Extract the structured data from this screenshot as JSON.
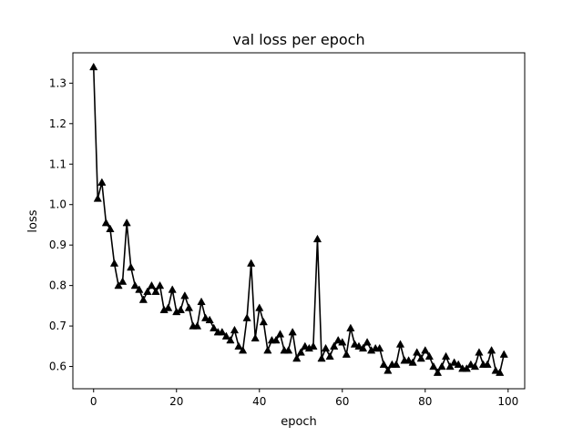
{
  "chart_data": {
    "type": "line",
    "title": "val loss per epoch",
    "xlabel": "epoch",
    "ylabel": "loss",
    "xlim": [
      -5,
      104
    ],
    "ylim": [
      0.545,
      1.375
    ],
    "xticks": [
      0,
      20,
      40,
      60,
      80,
      100
    ],
    "yticks": [
      0.6,
      0.7,
      0.8,
      0.9,
      1.0,
      1.1,
      1.2,
      1.3
    ],
    "xtick_labels": [
      "0",
      "20",
      "40",
      "60",
      "80",
      "100"
    ],
    "ytick_labels": [
      "0.6",
      "0.7",
      "0.8",
      "0.9",
      "1.0",
      "1.1",
      "1.2",
      "1.3"
    ],
    "grid": false,
    "marker": "triangle-up",
    "line_color": "#000000",
    "series": [
      {
        "x": [
          0,
          1,
          2,
          3,
          4,
          5,
          6,
          7,
          8,
          9,
          10,
          11,
          12,
          13,
          14,
          15,
          16,
          17,
          18,
          19,
          20,
          21,
          22,
          23,
          24,
          25,
          26,
          27,
          28,
          29,
          30,
          31,
          32,
          33,
          34,
          35,
          36,
          37,
          38,
          39,
          40,
          41,
          42,
          43,
          44,
          45,
          46,
          47,
          48,
          49,
          50,
          51,
          52,
          53,
          54,
          55,
          56,
          57,
          58,
          59,
          60,
          61,
          62,
          63,
          64,
          65,
          66,
          67,
          68,
          69,
          70,
          71,
          72,
          73,
          74,
          75,
          76,
          77,
          78,
          79,
          80,
          81,
          82,
          83,
          84,
          85,
          86,
          87,
          88,
          89,
          90,
          91,
          92,
          93,
          94,
          95,
          96,
          97,
          98,
          99
        ],
        "values": [
          1.34,
          1.015,
          1.055,
          0.955,
          0.94,
          0.855,
          0.8,
          0.81,
          0.955,
          0.845,
          0.8,
          0.79,
          0.765,
          0.785,
          0.8,
          0.785,
          0.8,
          0.74,
          0.745,
          0.79,
          0.735,
          0.74,
          0.775,
          0.745,
          0.7,
          0.7,
          0.76,
          0.72,
          0.715,
          0.695,
          0.685,
          0.685,
          0.675,
          0.665,
          0.69,
          0.65,
          0.64,
          0.72,
          0.855,
          0.67,
          0.745,
          0.71,
          0.64,
          0.665,
          0.665,
          0.68,
          0.64,
          0.64,
          0.685,
          0.62,
          0.635,
          0.65,
          0.645,
          0.65,
          0.915,
          0.62,
          0.645,
          0.625,
          0.65,
          0.665,
          0.66,
          0.63,
          0.695,
          0.655,
          0.65,
          0.645,
          0.66,
          0.64,
          0.645,
          0.645,
          0.605,
          0.59,
          0.605,
          0.605,
          0.655,
          0.615,
          0.615,
          0.61,
          0.635,
          0.62,
          0.64,
          0.625,
          0.6,
          0.585,
          0.6,
          0.625,
          0.6,
          0.61,
          0.605,
          0.595,
          0.595,
          0.605,
          0.6,
          0.635,
          0.605,
          0.605,
          0.64,
          0.59,
          0.585,
          0.63
        ]
      }
    ]
  }
}
